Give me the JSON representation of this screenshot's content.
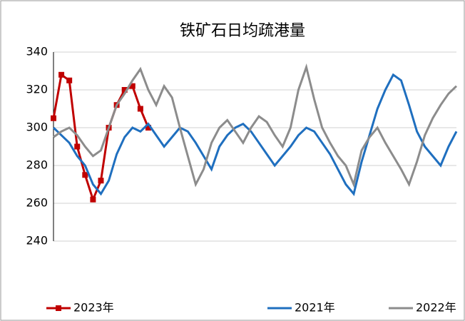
{
  "chart_data": {
    "type": "line",
    "title": "铁矿石日均疏港量",
    "ylim": [
      240,
      340
    ],
    "yticks": [
      240,
      260,
      280,
      300,
      320,
      340
    ],
    "grid": true,
    "series": [
      {
        "name": "2023年",
        "color": "#c00000",
        "marker": "square",
        "values": [
          305,
          328,
          325,
          290,
          275,
          262,
          272,
          300,
          312,
          320,
          322,
          310,
          300,
          null,
          null,
          null,
          null,
          null,
          null,
          null,
          null,
          null,
          null,
          null,
          null,
          null,
          null,
          null,
          null,
          null,
          null,
          null,
          null,
          null,
          null,
          null,
          null,
          null,
          null,
          null,
          null,
          null,
          null,
          null,
          null,
          null,
          null,
          null,
          null,
          null,
          null,
          null
        ]
      },
      {
        "name": "2021年",
        "color": "#1f6fbf",
        "values": [
          300,
          296,
          292,
          285,
          280,
          270,
          265,
          272,
          286,
          295,
          300,
          298,
          302,
          296,
          290,
          295,
          300,
          298,
          292,
          285,
          278,
          290,
          296,
          300,
          302,
          298,
          292,
          286,
          280,
          285,
          290,
          296,
          300,
          298,
          292,
          286,
          278,
          270,
          265,
          282,
          296,
          310,
          320,
          328,
          325,
          312,
          298,
          290,
          285,
          280,
          290,
          298
        ]
      },
      {
        "name": "2022年",
        "color": "#8c8c8c",
        "values": [
          295,
          298,
          300,
          296,
          290,
          285,
          288,
          300,
          312,
          318,
          325,
          331,
          320,
          312,
          322,
          316,
          300,
          285,
          270,
          278,
          292,
          300,
          304,
          298,
          292,
          300,
          306,
          303,
          296,
          290,
          300,
          320,
          332,
          315,
          300,
          292,
          285,
          280,
          270,
          288,
          295,
          300,
          292,
          285,
          278,
          270,
          282,
          296,
          305,
          312,
          318,
          322
        ]
      }
    ]
  }
}
